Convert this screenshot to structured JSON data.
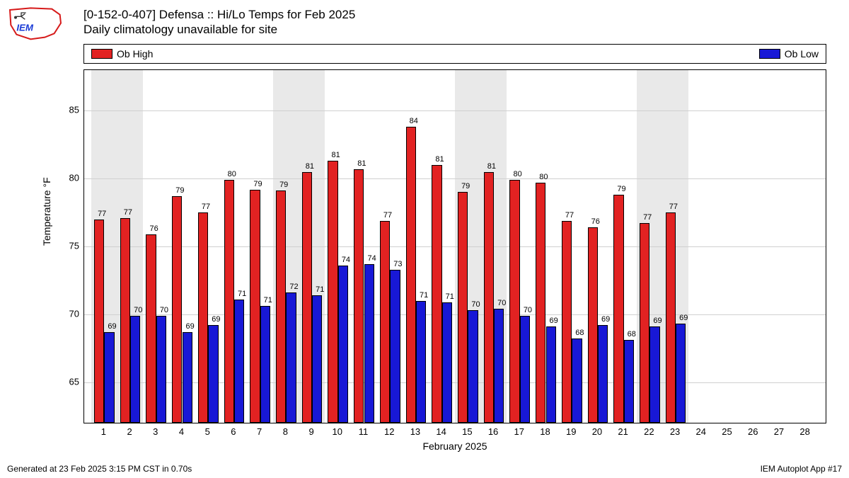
{
  "header": {
    "title_line1": "[0-152-0-407] Defensa :: Hi/Lo Temps for Feb 2025",
    "title_line2": "Daily climatology unavailable for site"
  },
  "chart": {
    "type": "bar",
    "legend": {
      "items": [
        {
          "label": "Ob High",
          "color": "#e22222"
        },
        {
          "label": "Ob Low",
          "color": "#1818d6"
        }
      ]
    },
    "ylabel": "Temperature °F",
    "xlabel": "February 2025",
    "ylim": [
      62,
      88
    ],
    "yticks": [
      65,
      70,
      75,
      80,
      85
    ],
    "categories": [
      1,
      2,
      3,
      4,
      5,
      6,
      7,
      8,
      9,
      10,
      11,
      12,
      13,
      14,
      15,
      16,
      17,
      18,
      19,
      20,
      21,
      22,
      23,
      24,
      25,
      26,
      27,
      28
    ],
    "weekend_days": [
      1,
      2,
      8,
      9,
      15,
      16,
      22,
      23
    ],
    "series": [
      {
        "name": "Ob High",
        "color": "#e22222",
        "values": [
          77.0,
          77.1,
          75.9,
          78.7,
          77.5,
          79.9,
          79.2,
          79.1,
          80.5,
          81.3,
          80.7,
          76.9,
          83.8,
          81.0,
          79.0,
          80.5,
          79.9,
          79.7,
          76.9,
          76.4,
          78.8,
          76.7,
          77.5,
          null,
          null,
          null,
          null,
          null
        ],
        "labels": [
          "77",
          "77",
          "76",
          "79",
          "77",
          "80",
          "79",
          "79",
          "81",
          "81",
          "81",
          "77",
          "84",
          "81",
          "79",
          "81",
          "80",
          "80",
          "77",
          "76",
          "79",
          "77",
          "77",
          "",
          "",
          "",
          "",
          ""
        ]
      },
      {
        "name": "Ob Low",
        "color": "#1818d6",
        "values": [
          68.7,
          69.9,
          69.9,
          68.7,
          69.2,
          71.1,
          70.6,
          71.6,
          71.4,
          73.6,
          73.7,
          73.3,
          71.0,
          70.9,
          70.3,
          70.4,
          69.9,
          69.1,
          68.2,
          69.2,
          68.1,
          69.1,
          69.3,
          null,
          null,
          null,
          null,
          null
        ],
        "labels": [
          "69",
          "70",
          "70",
          "69",
          "69",
          "71",
          "71",
          "72",
          "71",
          "74",
          "74",
          "73",
          "71",
          "71",
          "70",
          "70",
          "70",
          "69",
          "68",
          "69",
          "68",
          "69",
          "69",
          "",
          "",
          "",
          "",
          ""
        ]
      }
    ],
    "background_color": "#ffffff",
    "grid_color": "#d0d0d0",
    "bar_group_width": 0.78,
    "plot_fontsize_labels": 11,
    "axis_fontsize": 13
  },
  "footer": {
    "left": "Generated at 23 Feb 2025 3:15 PM CST in 0.70s",
    "right": "IEM Autoplot App #17"
  }
}
